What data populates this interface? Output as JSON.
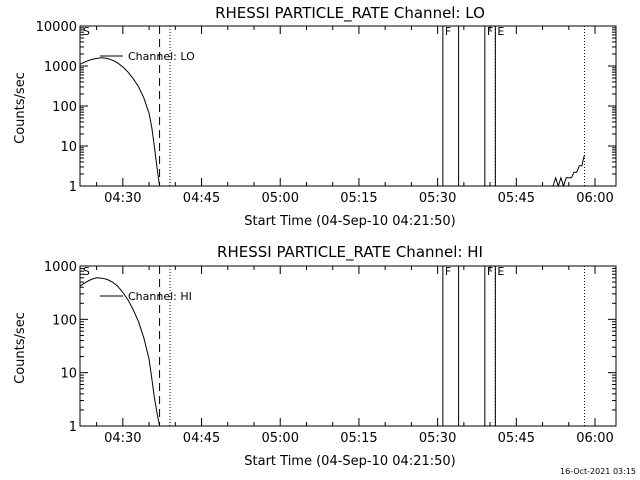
{
  "chart_data": [
    {
      "type": "line",
      "title": "RHESSI PARTICLE_RATE Channel: LO",
      "xlabel": "Start Time (04-Sep-10 04:21:50)",
      "ylabel": "Counts/sec",
      "yscale": "log",
      "ylim": [
        1,
        10000
      ],
      "xlim": [
        "04:21:50",
        "06:04:00"
      ],
      "x_ticks": [
        "04:30",
        "04:45",
        "05:00",
        "05:15",
        "05:30",
        "05:45",
        "06:00"
      ],
      "y_ticks": [
        "1",
        "10",
        "100",
        "1000",
        "10000"
      ],
      "grid": false,
      "legend": [
        {
          "name": "Channel: LO",
          "position": "top-left"
        }
      ],
      "flags": [
        {
          "label": "S",
          "time": "04:22"
        },
        {
          "label": "F",
          "time": "05:31"
        },
        {
          "label": "F",
          "time": "05:39"
        },
        {
          "label": "E",
          "time": "05:41"
        }
      ],
      "dashed_lines": [
        "04:37"
      ],
      "dotted_lines": [
        "04:39",
        "05:41",
        "05:58"
      ],
      "solid_lines": [
        "05:31",
        "05:34",
        "05:39",
        "05:41"
      ],
      "series": [
        {
          "name": "Channel: LO",
          "segments": [
            {
              "x": [
                "04:21:50",
                "04:23:00",
                "04:24:00",
                "04:25:00",
                "04:26:00",
                "04:27:00",
                "04:28:00",
                "04:29:00",
                "04:30:00",
                "04:31:00",
                "04:32:00",
                "04:33:00",
                "04:34:00",
                "04:35:00",
                "04:35:30",
                "04:36:00",
                "04:36:30",
                "04:37:00"
              ],
              "y": [
                1100,
                1300,
                1450,
                1550,
                1600,
                1550,
                1400,
                1200,
                950,
                700,
                480,
                300,
                160,
                65,
                30,
                10,
                3,
                1
              ]
            },
            {
              "x": [
                "05:52:00",
                "05:52:30",
                "05:53:00",
                "05:53:30",
                "05:54:00",
                "05:54:30",
                "05:55:00",
                "05:55:30",
                "05:56:00",
                "05:56:30",
                "05:57:00",
                "05:57:30",
                "05:57:45",
                "05:58:00"
              ],
              "y": [
                1,
                1.6,
                1,
                1.6,
                1,
                1.6,
                1.6,
                1.6,
                2.2,
                2.2,
                3.2,
                3.2,
                4.5,
                6
              ]
            }
          ]
        }
      ]
    },
    {
      "type": "line",
      "title": "RHESSI PARTICLE_RATE Channel: HI",
      "xlabel": "Start Time (04-Sep-10 04:21:50)",
      "ylabel": "Counts/sec",
      "yscale": "log",
      "ylim": [
        1,
        1000
      ],
      "xlim": [
        "04:21:50",
        "06:04:00"
      ],
      "x_ticks": [
        "04:30",
        "04:45",
        "05:00",
        "05:15",
        "05:30",
        "05:45",
        "06:00"
      ],
      "y_ticks": [
        "1",
        "10",
        "100",
        "1000"
      ],
      "grid": false,
      "legend": [
        {
          "name": "Channel: HI",
          "position": "top-left"
        }
      ],
      "flags": [
        {
          "label": "S",
          "time": "04:22"
        },
        {
          "label": "F",
          "time": "05:31"
        },
        {
          "label": "F",
          "time": "05:39"
        },
        {
          "label": "E",
          "time": "05:41"
        }
      ],
      "dashed_lines": [
        "04:37"
      ],
      "dotted_lines": [
        "04:39",
        "05:41",
        "05:58"
      ],
      "solid_lines": [
        "05:31",
        "05:34",
        "05:39",
        "05:41"
      ],
      "series": [
        {
          "name": "Channel: HI",
          "segments": [
            {
              "x": [
                "04:21:50",
                "04:23:00",
                "04:24:00",
                "04:25:00",
                "04:26:00",
                "04:27:00",
                "04:28:00",
                "04:29:00",
                "04:30:00",
                "04:31:00",
                "04:32:00",
                "04:33:00",
                "04:34:00",
                "04:35:00",
                "04:35:30",
                "04:36:00",
                "04:36:30",
                "04:37:00"
              ],
              "y": [
                420,
                500,
                560,
                600,
                590,
                560,
                500,
                420,
                320,
                230,
                150,
                90,
                45,
                18,
                8,
                3.5,
                1.8,
                1
              ]
            }
          ]
        }
      ]
    }
  ],
  "footer": {
    "timestamp": "16-Oct-2021 03:15"
  }
}
